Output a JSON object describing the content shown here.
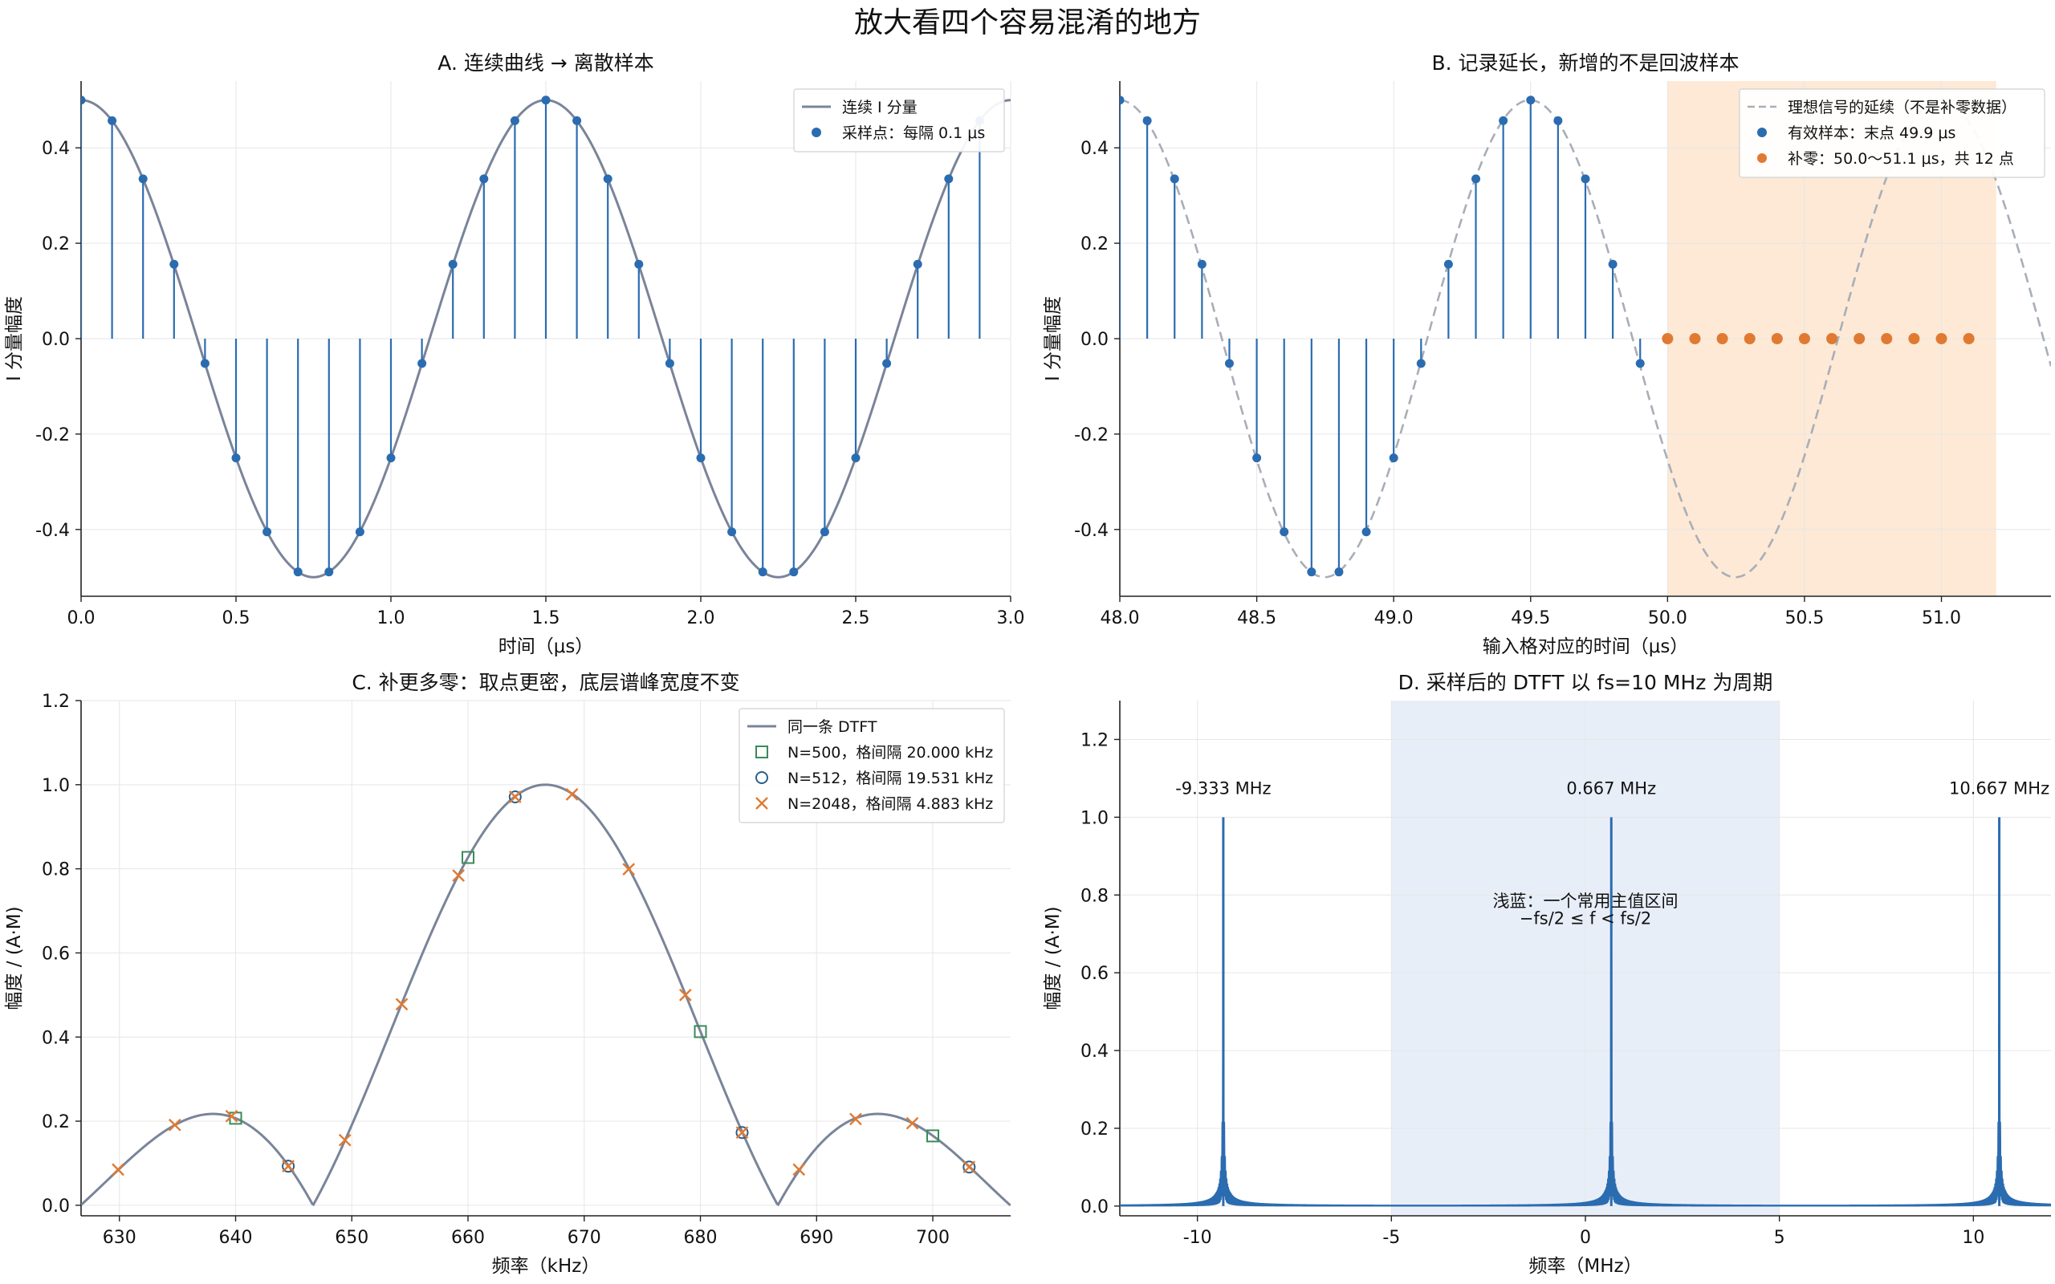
{
  "figure": {
    "title": "放大看四个容易混淆的地方"
  },
  "chart_data": [
    {
      "id": "A",
      "type": "line",
      "title": "A. 连续曲线 → 离散样本",
      "xlabel": "时间（μs）",
      "ylabel": "I 分量幅度",
      "xlim": [
        0,
        3.0
      ],
      "ylim": [
        -0.54,
        0.54
      ],
      "xticks": [
        "0.0",
        "0.5",
        "1.0",
        "1.5",
        "2.0",
        "2.5",
        "3.0"
      ],
      "xtick_values": [
        0,
        0.5,
        1.0,
        1.5,
        2.0,
        2.5,
        3.0
      ],
      "yticks": [
        "-0.4",
        "-0.2",
        "0.0",
        "0.2",
        "0.4"
      ],
      "ytick_values": [
        -0.4,
        -0.2,
        0.0,
        0.2,
        0.4
      ],
      "grid": true,
      "legend_position": "top-right",
      "series": [
        {
          "name": "连续 I 分量",
          "kind": "line",
          "color": "#7a8499",
          "function": "0.5*cos(2*pi*0.6667*t)",
          "t_range": [
            0,
            3.0
          ]
        },
        {
          "name": "采样点：每隔 0.1 μs",
          "kind": "stem",
          "color": "#2b6cb0",
          "x": [
            0.0,
            0.1,
            0.2,
            0.3,
            0.4,
            0.5,
            0.6,
            0.7,
            0.8,
            0.9,
            1.0,
            1.1,
            1.2,
            1.3,
            1.4,
            1.5,
            1.6,
            1.7,
            1.8,
            1.9,
            2.0,
            2.1,
            2.2,
            2.3,
            2.4,
            2.5,
            2.6,
            2.7,
            2.8,
            2.9
          ],
          "y": [
            0.5,
            0.457,
            0.335,
            0.156,
            -0.052,
            -0.25,
            -0.405,
            -0.489,
            -0.489,
            -0.405,
            -0.25,
            -0.052,
            0.156,
            0.335,
            0.457,
            0.5,
            0.457,
            0.335,
            0.156,
            -0.052,
            -0.25,
            -0.405,
            -0.489,
            -0.489,
            -0.405,
            -0.25,
            -0.052,
            0.156,
            0.335,
            0.457
          ]
        }
      ]
    },
    {
      "id": "B",
      "type": "line",
      "title": "B. 记录延长，新增的不是回波样本",
      "xlabel": "输入格对应的时间（μs）",
      "ylabel": "I 分量幅度",
      "xlim": [
        48.0,
        51.4
      ],
      "ylim": [
        -0.54,
        0.54
      ],
      "xticks": [
        "48.0",
        "48.5",
        "49.0",
        "49.5",
        "50.0",
        "50.5",
        "51.0"
      ],
      "xtick_values": [
        48.0,
        48.5,
        49.0,
        49.5,
        50.0,
        50.5,
        51.0
      ],
      "yticks": [
        "-0.4",
        "-0.2",
        "0.0",
        "0.2",
        "0.4"
      ],
      "ytick_values": [
        -0.4,
        -0.2,
        0.0,
        0.2,
        0.4
      ],
      "grid": true,
      "legend_position": "top-right",
      "shaded_region": {
        "x": [
          50.0,
          51.2
        ],
        "color": "#fde9d5"
      },
      "series": [
        {
          "name": "理想信号的延续（不是补零数据）",
          "kind": "dashed-line",
          "color": "#a8aeb8",
          "function": "0.5*cos(2*pi*0.6667*t)",
          "t_range": [
            48.0,
            51.4
          ]
        },
        {
          "name": "有效样本：末点 49.9 μs",
          "kind": "stem",
          "color": "#2b6cb0",
          "x": [
            48.0,
            48.1,
            48.2,
            48.3,
            48.4,
            48.5,
            48.6,
            48.7,
            48.8,
            48.9,
            49.0,
            49.1,
            49.2,
            49.3,
            49.4,
            49.5,
            49.6,
            49.7,
            49.8,
            49.9
          ],
          "y": [
            0.5,
            0.457,
            0.335,
            0.156,
            -0.052,
            -0.25,
            -0.405,
            -0.489,
            -0.489,
            -0.405,
            -0.25,
            -0.052,
            0.156,
            0.335,
            0.457,
            0.5,
            0.457,
            0.335,
            0.156,
            -0.052
          ]
        },
        {
          "name": "补零：50.0～51.1 μs，共 12 点",
          "kind": "points",
          "color": "#e07a32",
          "x": [
            50.0,
            50.1,
            50.2,
            50.3,
            50.4,
            50.5,
            50.6,
            50.7,
            50.8,
            50.9,
            51.0,
            51.1
          ],
          "y": [
            0,
            0,
            0,
            0,
            0,
            0,
            0,
            0,
            0,
            0,
            0,
            0
          ]
        }
      ]
    },
    {
      "id": "C",
      "type": "line",
      "title": "C. 补更多零：取点更密，底层谱峰宽度不变",
      "xlabel": "频率（kHz）",
      "ylabel": "幅度 / (A·M)",
      "xlim": [
        626.7,
        706.7
      ],
      "ylim": [
        -0.025,
        1.2
      ],
      "xticks": [
        "630",
        "640",
        "650",
        "660",
        "670",
        "680",
        "690",
        "700"
      ],
      "xtick_values": [
        630,
        640,
        650,
        660,
        670,
        680,
        690,
        700
      ],
      "yticks": [
        "0.0",
        "0.2",
        "0.4",
        "0.6",
        "0.8",
        "1.0",
        "1.2"
      ],
      "ytick_values": [
        0,
        0.2,
        0.4,
        0.6,
        0.8,
        1.0,
        1.2
      ],
      "grid": true,
      "legend_position": "top-right",
      "series": [
        {
          "name": "同一条 DTFT",
          "kind": "line",
          "color": "#7a8499",
          "function": "|sin(pi*(f-666.667)/20)/(pi*(f-666.667)/20)|",
          "f_range": [
            626.7,
            706.7
          ]
        },
        {
          "name": "N=500，格间隔 20.000 kHz",
          "kind": "square",
          "color": "#3a8a5a",
          "x": [
            640.0,
            660.0,
            680.0,
            700.0
          ],
          "y": [
            0.207,
            0.827,
            0.413,
            0.165
          ]
        },
        {
          "name": "N=512，格间隔 19.531 kHz",
          "kind": "circle",
          "color": "#2b5f8a",
          "x": [
            644.53,
            664.06,
            683.59,
            703.13
          ],
          "y": [
            0.093,
            0.971,
            0.173,
            0.091
          ]
        },
        {
          "name": "N=2048，格间隔 4.883 kHz",
          "kind": "cross",
          "color": "#e07a32",
          "x": [
            629.88,
            634.77,
            639.65,
            644.53,
            649.41,
            654.3,
            659.18,
            664.06,
            668.95,
            673.83,
            678.71,
            683.59,
            688.48,
            693.36,
            698.24,
            703.13
          ],
          "y": [
            0.085,
            0.191,
            0.212,
            0.093,
            0.155,
            0.478,
            0.784,
            0.971,
            0.977,
            0.799,
            0.5,
            0.173,
            0.085,
            0.205,
            0.195,
            0.091
          ]
        }
      ]
    },
    {
      "id": "D",
      "type": "line",
      "title": "D. 采样后的 DTFT 以 fs=10 MHz 为周期",
      "xlabel": "频率（MHz）",
      "ylabel": "幅度 / (A·M)",
      "xlim": [
        -12.0,
        12.0
      ],
      "ylim": [
        -0.025,
        1.3
      ],
      "xticks": [
        "-10",
        "-5",
        "0",
        "5",
        "10"
      ],
      "xtick_values": [
        -10,
        -5,
        0,
        5,
        10
      ],
      "yticks": [
        "0.0",
        "0.2",
        "0.4",
        "0.6",
        "0.8",
        "1.0",
        "1.2"
      ],
      "ytick_values": [
        0,
        0.2,
        0.4,
        0.6,
        0.8,
        1.0,
        1.2
      ],
      "grid": true,
      "shaded_region": {
        "x": [
          -5,
          5
        ],
        "color": "#e8eef8"
      },
      "peaks": [
        {
          "x": -9.333,
          "label": "-9.333 MHz"
        },
        {
          "x": 0.667,
          "label": "0.667 MHz"
        },
        {
          "x": 10.667,
          "label": "10.667 MHz"
        }
      ],
      "annotation": {
        "line1": "浅蓝：一个常用主值区间",
        "line2": "−fs/2 ≤ f < fs/2"
      },
      "series": [
        {
          "name": "",
          "kind": "line",
          "color": "#2b6cb0",
          "function": "periodic Dirichlet, N=500, peaks at 0.667 + k*10 MHz"
        }
      ]
    }
  ]
}
